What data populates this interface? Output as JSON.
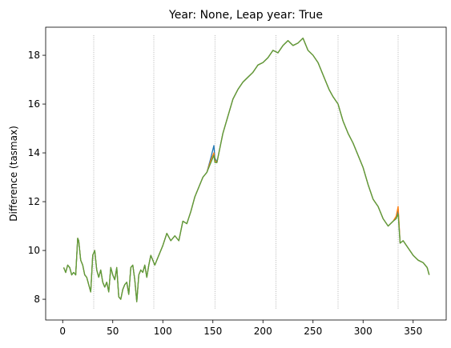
{
  "chart_data": {
    "type": "line",
    "title": "Year: None, Leap year: True",
    "xlabel": "",
    "ylabel": "Difference (tasmax)",
    "xlim": [
      -17,
      383
    ],
    "ylim": [
      7.15,
      19.15
    ],
    "xticks": [
      0,
      50,
      100,
      150,
      200,
      250,
      300,
      350
    ],
    "yticks": [
      8,
      10,
      12,
      14,
      16,
      18
    ],
    "grid": false,
    "legend": "none",
    "vlines": {
      "x": [
        31,
        91,
        152,
        213,
        275,
        335
      ],
      "ymin": 7.62,
      "ymax": 18.83,
      "color": "#808080",
      "style": "dotted"
    },
    "series": [
      {
        "color": "#1f77b4",
        "x": [
          1,
          3,
          5,
          7,
          9,
          11,
          13,
          15,
          16,
          18,
          20,
          22,
          24,
          26,
          28,
          30,
          32,
          34,
          36,
          38,
          40,
          42,
          44,
          46,
          48,
          50,
          52,
          54,
          56,
          58,
          60,
          62,
          64,
          66,
          68,
          70,
          72,
          74,
          76,
          78,
          80,
          82,
          84,
          86,
          88,
          90,
          92,
          96,
          100,
          104,
          108,
          112,
          116,
          120,
          124,
          128,
          132,
          136,
          140,
          144,
          148,
          151,
          152,
          154,
          157,
          160,
          165,
          170,
          175,
          180,
          185,
          190,
          195,
          200,
          205,
          210,
          215,
          220,
          225,
          230,
          235,
          240,
          245,
          250,
          255,
          258,
          262,
          266,
          270,
          275,
          280,
          285,
          290,
          295,
          300,
          305,
          310,
          315,
          320,
          325,
          330,
          333,
          335,
          337,
          340,
          345,
          350,
          355,
          360,
          364,
          366
        ],
        "y": [
          9.3,
          9.1,
          9.4,
          9.3,
          9.0,
          9.1,
          9.0,
          10.5,
          10.4,
          9.6,
          9.4,
          9.0,
          8.9,
          8.6,
          8.3,
          9.8,
          10.0,
          9.2,
          8.9,
          9.2,
          8.7,
          8.5,
          8.7,
          8.3,
          9.3,
          9.0,
          8.8,
          9.3,
          8.1,
          8.0,
          8.4,
          8.6,
          8.7,
          8.2,
          9.3,
          9.4,
          8.8,
          7.9,
          9.0,
          9.2,
          9.1,
          9.4,
          8.9,
          9.4,
          9.8,
          9.6,
          9.4,
          9.8,
          10.2,
          10.7,
          10.4,
          10.6,
          10.4,
          11.2,
          11.1,
          11.6,
          12.2,
          12.6,
          13.0,
          13.2,
          13.8,
          14.3,
          13.8,
          13.6,
          14.2,
          14.8,
          15.5,
          16.2,
          16.6,
          16.9,
          17.1,
          17.3,
          17.6,
          17.7,
          17.9,
          18.2,
          18.1,
          18.4,
          18.6,
          18.4,
          18.5,
          18.7,
          18.2,
          18.0,
          17.7,
          17.4,
          17.0,
          16.6,
          16.3,
          16.0,
          15.3,
          14.8,
          14.4,
          13.9,
          13.4,
          12.7,
          12.1,
          11.8,
          11.3,
          11.0,
          11.2,
          11.3,
          11.7,
          10.3,
          10.4,
          10.1,
          9.8,
          9.6,
          9.5,
          9.3,
          9.0
        ]
      },
      {
        "color": "#ff7f0e",
        "x": [
          1,
          3,
          5,
          7,
          9,
          11,
          13,
          15,
          16,
          18,
          20,
          22,
          24,
          26,
          28,
          30,
          32,
          34,
          36,
          38,
          40,
          42,
          44,
          46,
          48,
          50,
          52,
          54,
          56,
          58,
          60,
          62,
          64,
          66,
          68,
          70,
          72,
          74,
          76,
          78,
          80,
          82,
          84,
          86,
          88,
          90,
          92,
          96,
          100,
          104,
          108,
          112,
          116,
          120,
          124,
          128,
          132,
          136,
          140,
          144,
          148,
          151,
          152,
          154,
          157,
          160,
          165,
          170,
          175,
          180,
          185,
          190,
          195,
          200,
          205,
          210,
          215,
          220,
          225,
          230,
          235,
          240,
          245,
          250,
          255,
          258,
          262,
          266,
          270,
          275,
          280,
          285,
          290,
          295,
          300,
          305,
          310,
          315,
          320,
          325,
          330,
          333,
          335,
          337,
          340,
          345,
          350,
          355,
          360,
          364,
          366
        ],
        "y": [
          9.3,
          9.1,
          9.4,
          9.3,
          9.0,
          9.1,
          9.0,
          10.5,
          10.4,
          9.6,
          9.4,
          9.0,
          8.9,
          8.6,
          8.3,
          9.8,
          10.0,
          9.2,
          8.9,
          9.2,
          8.7,
          8.5,
          8.7,
          8.3,
          9.3,
          9.0,
          8.8,
          9.3,
          8.1,
          8.0,
          8.4,
          8.6,
          8.7,
          8.2,
          9.3,
          9.4,
          8.8,
          7.9,
          9.0,
          9.2,
          9.1,
          9.4,
          8.9,
          9.4,
          9.8,
          9.6,
          9.4,
          9.8,
          10.2,
          10.7,
          10.4,
          10.6,
          10.4,
          11.2,
          11.1,
          11.6,
          12.2,
          12.6,
          13.0,
          13.2,
          13.7,
          14.0,
          13.7,
          13.6,
          14.2,
          14.8,
          15.5,
          16.2,
          16.6,
          16.9,
          17.1,
          17.3,
          17.6,
          17.7,
          17.9,
          18.2,
          18.1,
          18.4,
          18.6,
          18.4,
          18.5,
          18.7,
          18.2,
          18.0,
          17.7,
          17.4,
          17.0,
          16.6,
          16.3,
          16.0,
          15.3,
          14.8,
          14.4,
          13.9,
          13.4,
          12.7,
          12.1,
          11.8,
          11.3,
          11.0,
          11.2,
          11.4,
          11.8,
          10.3,
          10.4,
          10.1,
          9.8,
          9.6,
          9.5,
          9.3,
          9.0
        ]
      },
      {
        "color": "#5a9e3c",
        "x": [
          1,
          3,
          5,
          7,
          9,
          11,
          13,
          15,
          16,
          18,
          20,
          22,
          24,
          26,
          28,
          30,
          32,
          34,
          36,
          38,
          40,
          42,
          44,
          46,
          48,
          50,
          52,
          54,
          56,
          58,
          60,
          62,
          64,
          66,
          68,
          70,
          72,
          74,
          76,
          78,
          80,
          82,
          84,
          86,
          88,
          90,
          92,
          96,
          100,
          104,
          108,
          112,
          116,
          120,
          124,
          128,
          132,
          136,
          140,
          144,
          148,
          151,
          152,
          154,
          157,
          160,
          165,
          170,
          175,
          180,
          185,
          190,
          195,
          200,
          205,
          210,
          215,
          220,
          225,
          230,
          235,
          240,
          245,
          250,
          255,
          258,
          262,
          266,
          270,
          275,
          280,
          285,
          290,
          295,
          300,
          305,
          310,
          315,
          320,
          325,
          330,
          333,
          335,
          337,
          340,
          345,
          350,
          355,
          360,
          364,
          366
        ],
        "y": [
          9.3,
          9.1,
          9.4,
          9.3,
          9.0,
          9.1,
          9.0,
          10.5,
          10.4,
          9.6,
          9.4,
          9.0,
          8.9,
          8.6,
          8.3,
          9.8,
          10.0,
          9.2,
          8.9,
          9.2,
          8.7,
          8.5,
          8.7,
          8.3,
          9.3,
          9.0,
          8.8,
          9.3,
          8.1,
          8.0,
          8.4,
          8.6,
          8.7,
          8.2,
          9.3,
          9.4,
          8.8,
          7.9,
          9.0,
          9.2,
          9.1,
          9.4,
          8.9,
          9.4,
          9.8,
          9.6,
          9.4,
          9.8,
          10.2,
          10.7,
          10.4,
          10.6,
          10.4,
          11.2,
          11.1,
          11.6,
          12.2,
          12.6,
          13.0,
          13.2,
          13.6,
          13.9,
          13.6,
          13.6,
          14.2,
          14.8,
          15.5,
          16.2,
          16.6,
          16.9,
          17.1,
          17.3,
          17.6,
          17.7,
          17.9,
          18.2,
          18.1,
          18.4,
          18.6,
          18.4,
          18.5,
          18.7,
          18.2,
          18.0,
          17.7,
          17.4,
          17.0,
          16.6,
          16.3,
          16.0,
          15.3,
          14.8,
          14.4,
          13.9,
          13.4,
          12.7,
          12.1,
          11.8,
          11.3,
          11.0,
          11.2,
          11.3,
          11.5,
          10.3,
          10.4,
          10.1,
          9.8,
          9.6,
          9.5,
          9.3,
          9.0
        ]
      }
    ]
  }
}
